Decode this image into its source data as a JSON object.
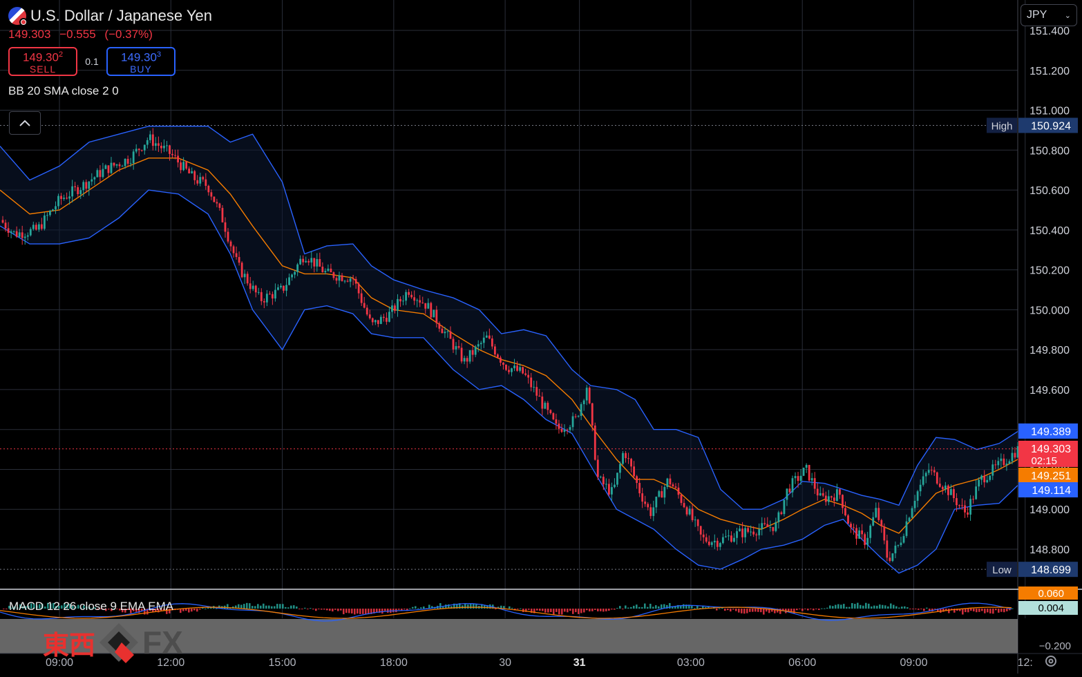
{
  "header": {
    "title": "U.S. Dollar / Japanese Yen",
    "last": "149.303",
    "change": "−0.555",
    "change_pct": "(−0.37%)",
    "sell_price": "149.30",
    "sell_sup": "2",
    "sell_label": "SELL",
    "buy_price": "149.30",
    "buy_sup": "3",
    "buy_label": "BUY",
    "lot": "0.1",
    "indicator": "BB 20 SMA close 2 0",
    "currency": "JPY"
  },
  "macd": {
    "label": "MACD 12 26 close 9 EMA EMA"
  },
  "watermark": {
    "kanji": "東西",
    "fx": "FX"
  },
  "colors": {
    "up": "#26a69a",
    "down": "#f23645",
    "band": "#2962ff",
    "basis": "#f57c00",
    "high_tag": "#1e3a6e"
  },
  "icons": {
    "collapse": "chevron-up-icon",
    "settings": "gear-icon",
    "flag": "usd-jpy-flag-icon"
  },
  "chart_data": {
    "type": "candlestick",
    "symbol": "U.S. Dollar / Japanese Yen",
    "ylim": [
      148.62,
      151.45
    ],
    "y_ticks": [
      "151.400",
      "151.200",
      "151.000",
      "150.800",
      "150.600",
      "150.400",
      "150.200",
      "150.000",
      "149.800",
      "149.600",
      "149.400",
      "149.200",
      "149.000",
      "148.800"
    ],
    "x_ticks": [
      {
        "label": "09:00",
        "t": 0
      },
      {
        "label": "12:00",
        "t": 3
      },
      {
        "label": "15:00",
        "t": 6
      },
      {
        "label": "18:00",
        "t": 9
      },
      {
        "label": "30",
        "t": 12
      },
      {
        "label": "31",
        "t": 14
      },
      {
        "label": "03:00",
        "t": 17
      },
      {
        "label": "06:00",
        "t": 20
      },
      {
        "label": "09:00",
        "t": 23
      },
      {
        "label": "12:",
        "t": 26
      }
    ],
    "x_range": [
      -1.6,
      25.8
    ],
    "high": {
      "label": "High",
      "value": "150.924",
      "num": 150.924
    },
    "low": {
      "label": "Low",
      "value": "148.699",
      "num": 148.699
    },
    "price_tags": [
      {
        "value": "149.389",
        "num": 149.389,
        "color": "#2962ff"
      },
      {
        "value": "149.303",
        "sub": "02:15",
        "num": 149.303,
        "color": "#f23645"
      },
      {
        "value": "149.251",
        "num": 149.251,
        "color": "#f57c00"
      },
      {
        "value": "149.114",
        "num": 149.114,
        "color": "#2962ff"
      }
    ],
    "price_path": [
      [
        -1.6,
        150.45
      ],
      [
        -1.2,
        150.38
      ],
      [
        -0.6,
        150.4
      ],
      [
        0.0,
        150.55
      ],
      [
        0.6,
        150.62
      ],
      [
        1.2,
        150.7
      ],
      [
        1.9,
        150.76
      ],
      [
        2.4,
        150.86
      ],
      [
        3.0,
        150.78
      ],
      [
        3.6,
        150.66
      ],
      [
        4.0,
        150.62
      ],
      [
        4.4,
        150.45
      ],
      [
        4.8,
        150.22
      ],
      [
        5.4,
        150.05
      ],
      [
        6.0,
        150.1
      ],
      [
        6.6,
        150.28
      ],
      [
        7.2,
        150.18
      ],
      [
        7.9,
        150.16
      ],
      [
        8.4,
        149.92
      ],
      [
        8.9,
        149.98
      ],
      [
        9.4,
        150.1
      ],
      [
        9.9,
        150.02
      ],
      [
        10.4,
        149.88
      ],
      [
        10.9,
        149.74
      ],
      [
        11.5,
        149.86
      ],
      [
        12.0,
        149.72
      ],
      [
        12.5,
        149.68
      ],
      [
        12.9,
        149.56
      ],
      [
        13.4,
        149.4
      ],
      [
        13.9,
        149.45
      ],
      [
        14.2,
        149.62
      ],
      [
        14.5,
        149.15
      ],
      [
        14.9,
        149.08
      ],
      [
        15.2,
        149.3
      ],
      [
        15.6,
        149.1
      ],
      [
        15.9,
        148.98
      ],
      [
        16.4,
        149.15
      ],
      [
        16.9,
        149.0
      ],
      [
        17.3,
        148.85
      ],
      [
        17.7,
        148.84
      ],
      [
        18.3,
        148.88
      ],
      [
        18.8,
        148.9
      ],
      [
        19.3,
        148.92
      ],
      [
        19.6,
        149.1
      ],
      [
        20.1,
        149.2
      ],
      [
        20.5,
        149.05
      ],
      [
        21.0,
        149.08
      ],
      [
        21.3,
        148.9
      ],
      [
        21.7,
        148.84
      ],
      [
        22.0,
        149.0
      ],
      [
        22.3,
        148.75
      ],
      [
        22.6,
        148.82
      ],
      [
        23.0,
        149.05
      ],
      [
        23.4,
        149.2
      ],
      [
        23.9,
        149.1
      ],
      [
        24.4,
        148.98
      ],
      [
        24.8,
        149.15
      ],
      [
        25.3,
        149.22
      ],
      [
        25.8,
        149.3
      ]
    ],
    "upper_band": [
      [
        -1.6,
        150.82
      ],
      [
        -0.8,
        150.65
      ],
      [
        0.0,
        150.72
      ],
      [
        0.8,
        150.84
      ],
      [
        1.6,
        150.88
      ],
      [
        2.4,
        150.92
      ],
      [
        3.2,
        150.92
      ],
      [
        4.0,
        150.92
      ],
      [
        4.6,
        150.84
      ],
      [
        5.2,
        150.88
      ],
      [
        6.0,
        150.64
      ],
      [
        6.6,
        150.28
      ],
      [
        7.2,
        150.32
      ],
      [
        7.9,
        150.33
      ],
      [
        8.4,
        150.22
      ],
      [
        9.0,
        150.15
      ],
      [
        9.8,
        150.1
      ],
      [
        10.6,
        150.06
      ],
      [
        11.3,
        150.0
      ],
      [
        11.9,
        149.88
      ],
      [
        12.5,
        149.9
      ],
      [
        13.1,
        149.87
      ],
      [
        13.8,
        149.7
      ],
      [
        14.3,
        149.62
      ],
      [
        15.0,
        149.6
      ],
      [
        15.5,
        149.55
      ],
      [
        16.0,
        149.4
      ],
      [
        16.6,
        149.4
      ],
      [
        17.2,
        149.36
      ],
      [
        17.8,
        149.1
      ],
      [
        18.4,
        149.0
      ],
      [
        18.9,
        149.0
      ],
      [
        19.5,
        149.05
      ],
      [
        20.0,
        149.14
      ],
      [
        20.6,
        149.13
      ],
      [
        21.1,
        149.1
      ],
      [
        21.6,
        149.07
      ],
      [
        22.1,
        149.05
      ],
      [
        22.6,
        149.02
      ],
      [
        23.1,
        149.22
      ],
      [
        23.6,
        149.36
      ],
      [
        24.1,
        149.35
      ],
      [
        24.7,
        149.3
      ],
      [
        25.3,
        149.33
      ],
      [
        25.8,
        149.39
      ]
    ],
    "basis": [
      [
        -1.6,
        150.6
      ],
      [
        -0.8,
        150.48
      ],
      [
        0.0,
        150.5
      ],
      [
        0.8,
        150.6
      ],
      [
        1.6,
        150.7
      ],
      [
        2.4,
        150.76
      ],
      [
        3.2,
        150.76
      ],
      [
        4.0,
        150.7
      ],
      [
        4.6,
        150.58
      ],
      [
        5.2,
        150.42
      ],
      [
        6.0,
        150.22
      ],
      [
        6.6,
        150.18
      ],
      [
        7.2,
        150.18
      ],
      [
        7.9,
        150.16
      ],
      [
        8.4,
        150.06
      ],
      [
        9.0,
        150.0
      ],
      [
        9.8,
        149.98
      ],
      [
        10.6,
        149.88
      ],
      [
        11.3,
        149.8
      ],
      [
        11.9,
        149.75
      ],
      [
        12.5,
        149.72
      ],
      [
        13.1,
        149.67
      ],
      [
        13.8,
        149.55
      ],
      [
        14.3,
        149.42
      ],
      [
        15.0,
        149.25
      ],
      [
        15.5,
        149.15
      ],
      [
        16.0,
        149.15
      ],
      [
        16.6,
        149.1
      ],
      [
        17.2,
        149.0
      ],
      [
        17.8,
        148.95
      ],
      [
        18.4,
        148.92
      ],
      [
        18.9,
        148.9
      ],
      [
        19.5,
        148.95
      ],
      [
        20.0,
        149.0
      ],
      [
        20.6,
        149.05
      ],
      [
        21.1,
        149.02
      ],
      [
        21.6,
        148.98
      ],
      [
        22.1,
        148.92
      ],
      [
        22.6,
        148.88
      ],
      [
        23.1,
        148.98
      ],
      [
        23.6,
        149.08
      ],
      [
        24.1,
        149.12
      ],
      [
        24.7,
        149.15
      ],
      [
        25.3,
        149.2
      ],
      [
        25.8,
        149.25
      ]
    ],
    "lower_band": [
      [
        -1.6,
        150.42
      ],
      [
        -0.8,
        150.33
      ],
      [
        0.0,
        150.33
      ],
      [
        0.8,
        150.36
      ],
      [
        1.6,
        150.46
      ],
      [
        2.4,
        150.6
      ],
      [
        3.2,
        150.58
      ],
      [
        4.0,
        150.48
      ],
      [
        4.6,
        150.28
      ],
      [
        5.2,
        150.0
      ],
      [
        6.0,
        149.8
      ],
      [
        6.6,
        150.0
      ],
      [
        7.2,
        150.02
      ],
      [
        7.9,
        149.98
      ],
      [
        8.4,
        149.88
      ],
      [
        9.0,
        149.86
      ],
      [
        9.8,
        149.86
      ],
      [
        10.6,
        149.7
      ],
      [
        11.3,
        149.6
      ],
      [
        11.9,
        149.62
      ],
      [
        12.5,
        149.55
      ],
      [
        13.1,
        149.45
      ],
      [
        13.8,
        149.38
      ],
      [
        14.3,
        149.22
      ],
      [
        15.0,
        149.0
      ],
      [
        15.5,
        148.95
      ],
      [
        16.0,
        148.9
      ],
      [
        16.6,
        148.8
      ],
      [
        17.2,
        148.72
      ],
      [
        17.8,
        148.7
      ],
      [
        18.4,
        148.75
      ],
      [
        18.9,
        148.8
      ],
      [
        19.5,
        148.82
      ],
      [
        20.0,
        148.85
      ],
      [
        20.6,
        148.92
      ],
      [
        21.1,
        148.95
      ],
      [
        21.6,
        148.85
      ],
      [
        22.1,
        148.76
      ],
      [
        22.6,
        148.68
      ],
      [
        23.1,
        148.72
      ],
      [
        23.6,
        148.8
      ],
      [
        24.1,
        149.0
      ],
      [
        24.7,
        149.02
      ],
      [
        25.3,
        149.03
      ],
      [
        25.8,
        149.12
      ]
    ],
    "macd": {
      "tags": [
        {
          "value": "0.060",
          "color": "#f57c00"
        },
        {
          "value": "0.004",
          "color": "#b2dfdb"
        }
      ],
      "axis_label": "−0.200"
    }
  }
}
